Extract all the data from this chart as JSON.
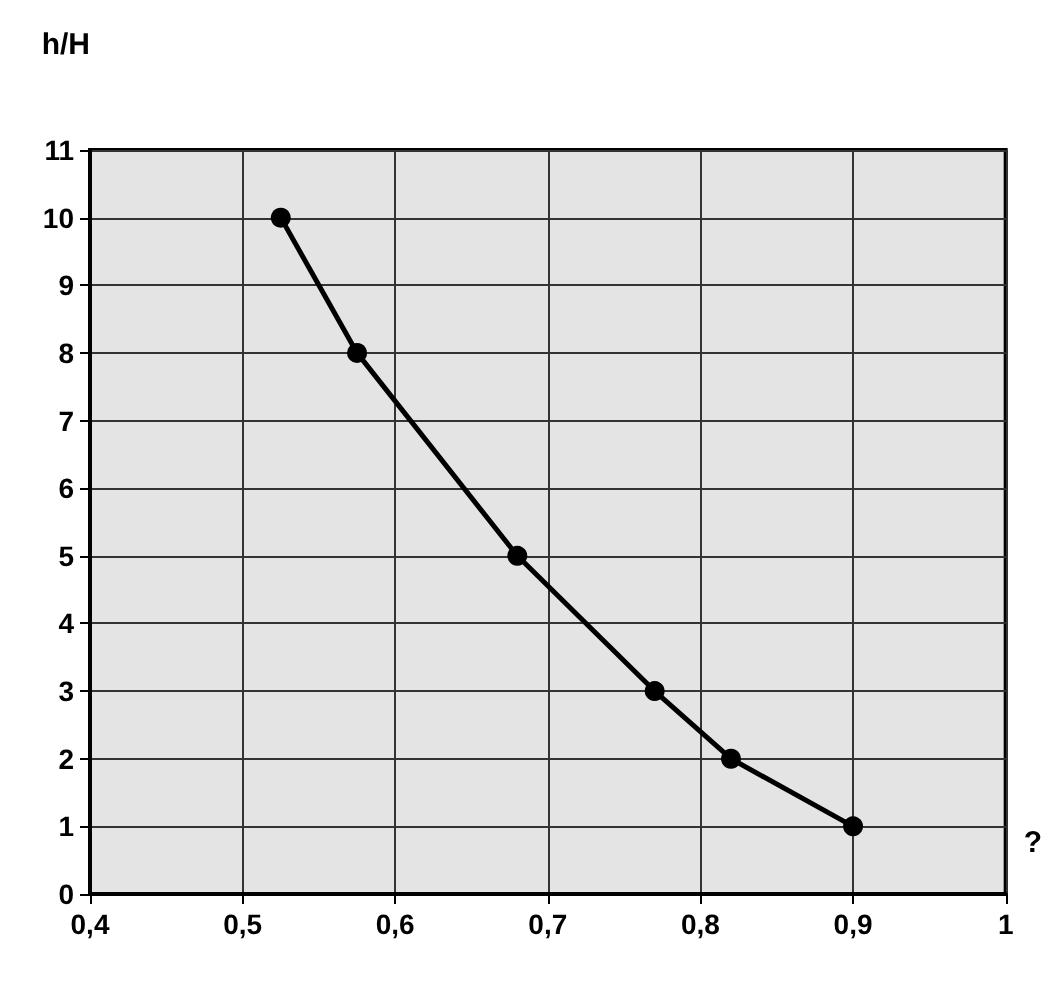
{
  "chart_data": {
    "type": "line",
    "ylabel": "h/H",
    "xlabel": "?",
    "x": [
      0.525,
      0.575,
      0.68,
      0.77,
      0.82,
      0.9
    ],
    "series": [
      {
        "color": "#000000",
        "values": [
          10,
          8,
          5,
          3,
          2,
          1
        ]
      }
    ],
    "xlim": [
      0.4,
      1
    ],
    "xticks": [
      {
        "value": 0.4,
        "label": "0,4"
      },
      {
        "value": 0.5,
        "label": "0,5"
      },
      {
        "value": 0.6,
        "label": "0,6"
      },
      {
        "value": 0.7,
        "label": "0,7"
      },
      {
        "value": 0.8,
        "label": "0,8"
      },
      {
        "value": 0.9,
        "label": "0,9"
      },
      {
        "value": 1,
        "label": "1"
      }
    ],
    "ylim": [
      0,
      11
    ],
    "yticks": [
      0,
      1,
      2,
      3,
      4,
      5,
      6,
      7,
      8,
      9,
      10,
      11
    ],
    "grid": true,
    "marker": "circle",
    "line_style": "solid"
  }
}
